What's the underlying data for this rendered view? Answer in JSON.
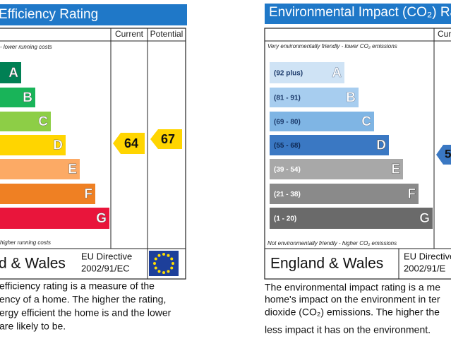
{
  "left": {
    "title": "Efficiency Rating",
    "columns": [
      "Current",
      "Potential"
    ],
    "top_note": "- lower running costs",
    "bands": [
      {
        "letter": "A",
        "color": "#008054"
      },
      {
        "letter": "B",
        "color": "#19b459"
      },
      {
        "letter": "C",
        "color": "#8dce46"
      },
      {
        "letter": "D",
        "color": "#ffd500"
      },
      {
        "letter": "E",
        "color": "#fcaa65"
      },
      {
        "letter": "F",
        "color": "#ef8023"
      },
      {
        "letter": "G",
        "color": "#e9153b"
      }
    ],
    "bottom_note": "higher running costs",
    "current": 64,
    "potential": 67,
    "region": "d & Wales",
    "directive": [
      "EU Directive",
      "2002/91/EC"
    ],
    "description": [
      "efficiency rating is a measure of the",
      "ency of a home. The higher the rating,",
      "ergy efficient the home is and the lower",
      "are likely to be."
    ]
  },
  "right": {
    "title": "Environmental Impact (CO₂) Ra",
    "columns": [
      "Cur"
    ],
    "top_note": "Very environmentally friendly - lower CO₂ emissions",
    "bands": [
      {
        "range": "(92 plus)",
        "letter": "A",
        "color": "#cfe3f5"
      },
      {
        "range": "(81 - 91)",
        "letter": "B",
        "color": "#a7cdef"
      },
      {
        "range": "(69 - 80)",
        "letter": "C",
        "color": "#7fb5e4"
      },
      {
        "range": "(55 - 68)",
        "letter": "D",
        "color": "#3a78c3"
      },
      {
        "range": "(39 - 54)",
        "letter": "E",
        "color": "#a8a8a8"
      },
      {
        "range": "(21 - 38)",
        "letter": "F",
        "color": "#8a8a8a"
      },
      {
        "range": "(1 - 20)",
        "letter": "G",
        "color": "#6a6a6a"
      }
    ],
    "bottom_note": "Not environmentally friendly - higher CO₂ emissions",
    "current": 5,
    "region": "England & Wales",
    "directive": [
      "EU Directive",
      "2002/91/E"
    ],
    "description": [
      "The environmental impact rating is a me",
      "home's impact on the environment in ter",
      "dioxide (CO₂) emissions. The higher the",
      "less impact it has on the environment."
    ]
  }
}
